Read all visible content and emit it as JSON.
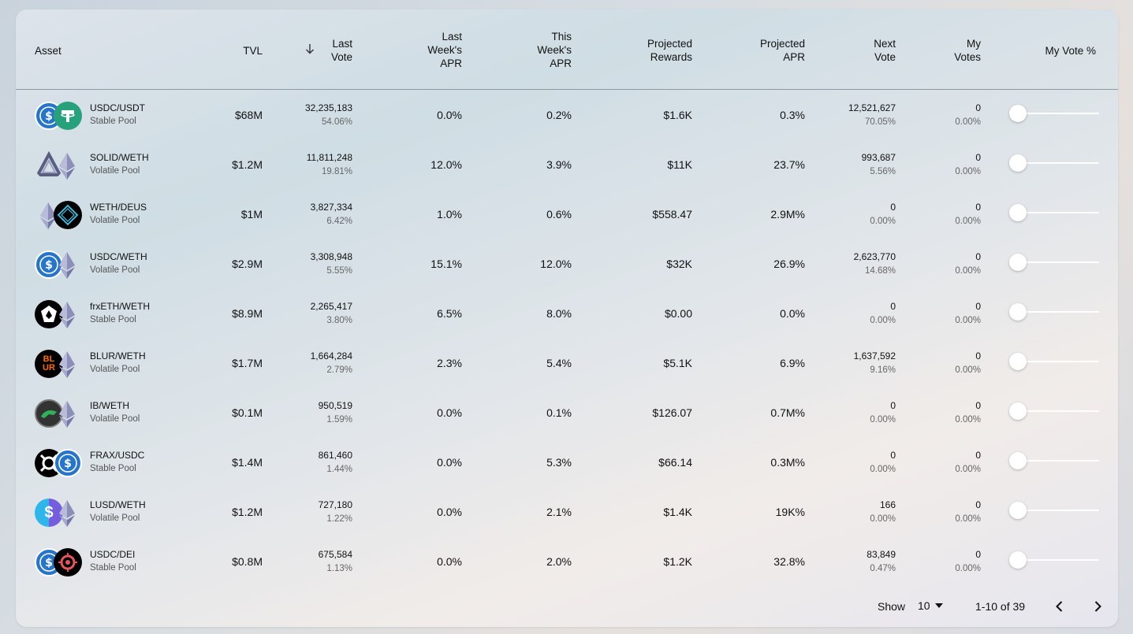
{
  "headers": {
    "asset": "Asset",
    "tvl": "TVL",
    "last_vote": "Last\nVote",
    "last_week_apr": "Last\nWeek's\nAPR",
    "this_week_apr": "This\nWeek's\nAPR",
    "projected_rewards": "Projected\nRewards",
    "projected_apr": "Projected\nAPR",
    "next_vote": "Next\nVote",
    "my_votes": "My\nVotes",
    "my_vote_pct": "My Vote %"
  },
  "rows": [
    {
      "pair": "USDC/USDT",
      "pool": "Stable Pool",
      "tvl": "$68M",
      "last_vote": "32,235,183",
      "last_vote_pct": "54.06%",
      "last_week_apr": "0.0%",
      "this_week_apr": "0.2%",
      "projected_rewards": "$1.6K",
      "projected_apr": "0.3%",
      "next_vote": "12,521,627",
      "next_vote_pct": "70.05%",
      "my_votes": "0",
      "my_votes_pct": "0.00%",
      "icon_a": "usdc-icon",
      "icon_b": "usdt-icon",
      "slider_value": 0
    },
    {
      "pair": "SOLID/WETH",
      "pool": "Volatile Pool",
      "tvl": "$1.2M",
      "last_vote": "11,811,248",
      "last_vote_pct": "19.81%",
      "last_week_apr": "12.0%",
      "this_week_apr": "3.9%",
      "projected_rewards": "$11K",
      "projected_apr": "23.7%",
      "next_vote": "993,687",
      "next_vote_pct": "5.56%",
      "my_votes": "0",
      "my_votes_pct": "0.00%",
      "icon_a": "solid-icon",
      "icon_b": "weth-icon",
      "slider_value": 0
    },
    {
      "pair": "WETH/DEUS",
      "pool": "Volatile Pool",
      "tvl": "$1M",
      "last_vote": "3,827,334",
      "last_vote_pct": "6.42%",
      "last_week_apr": "1.0%",
      "this_week_apr": "0.6%",
      "projected_rewards": "$558.47",
      "projected_apr": "2.9M%",
      "next_vote": "0",
      "next_vote_pct": "0.00%",
      "my_votes": "0",
      "my_votes_pct": "0.00%",
      "icon_a": "weth-icon",
      "icon_b": "deus-icon",
      "slider_value": 0
    },
    {
      "pair": "USDC/WETH",
      "pool": "Volatile Pool",
      "tvl": "$2.9M",
      "last_vote": "3,308,948",
      "last_vote_pct": "5.55%",
      "last_week_apr": "15.1%",
      "this_week_apr": "12.0%",
      "projected_rewards": "$32K",
      "projected_apr": "26.9%",
      "next_vote": "2,623,770",
      "next_vote_pct": "14.68%",
      "my_votes": "0",
      "my_votes_pct": "0.00%",
      "icon_a": "usdc-icon",
      "icon_b": "weth-icon",
      "slider_value": 0
    },
    {
      "pair": "frxETH/WETH",
      "pool": "Stable Pool",
      "tvl": "$8.9M",
      "last_vote": "2,265,417",
      "last_vote_pct": "3.80%",
      "last_week_apr": "6.5%",
      "this_week_apr": "8.0%",
      "projected_rewards": "$0.00",
      "projected_apr": "0.0%",
      "next_vote": "0",
      "next_vote_pct": "0.00%",
      "my_votes": "0",
      "my_votes_pct": "0.00%",
      "icon_a": "frxeth-icon",
      "icon_b": "weth-icon",
      "slider_value": 0
    },
    {
      "pair": "BLUR/WETH",
      "pool": "Volatile Pool",
      "tvl": "$1.7M",
      "last_vote": "1,664,284",
      "last_vote_pct": "2.79%",
      "last_week_apr": "2.3%",
      "this_week_apr": "5.4%",
      "projected_rewards": "$5.1K",
      "projected_apr": "6.9%",
      "next_vote": "1,637,592",
      "next_vote_pct": "9.16%",
      "my_votes": "0",
      "my_votes_pct": "0.00%",
      "icon_a": "blur-icon",
      "icon_b": "weth-icon",
      "slider_value": 0
    },
    {
      "pair": "IB/WETH",
      "pool": "Volatile Pool",
      "tvl": "$0.1M",
      "last_vote": "950,519",
      "last_vote_pct": "1.59%",
      "last_week_apr": "0.0%",
      "this_week_apr": "0.1%",
      "projected_rewards": "$126.07",
      "projected_apr": "0.7M%",
      "next_vote": "0",
      "next_vote_pct": "0.00%",
      "my_votes": "0",
      "my_votes_pct": "0.00%",
      "icon_a": "ib-icon",
      "icon_b": "weth-icon",
      "slider_value": 0
    },
    {
      "pair": "FRAX/USDC",
      "pool": "Stable Pool",
      "tvl": "$1.4M",
      "last_vote": "861,460",
      "last_vote_pct": "1.44%",
      "last_week_apr": "0.0%",
      "this_week_apr": "5.3%",
      "projected_rewards": "$66.14",
      "projected_apr": "0.3M%",
      "next_vote": "0",
      "next_vote_pct": "0.00%",
      "my_votes": "0",
      "my_votes_pct": "0.00%",
      "icon_a": "frax-icon",
      "icon_b": "usdc-icon",
      "slider_value": 0
    },
    {
      "pair": "LUSD/WETH",
      "pool": "Volatile Pool",
      "tvl": "$1.2M",
      "last_vote": "727,180",
      "last_vote_pct": "1.22%",
      "last_week_apr": "0.0%",
      "this_week_apr": "2.1%",
      "projected_rewards": "$1.4K",
      "projected_apr": "19K%",
      "next_vote": "166",
      "next_vote_pct": "0.00%",
      "my_votes": "0",
      "my_votes_pct": "0.00%",
      "icon_a": "lusd-icon",
      "icon_b": "weth-icon",
      "slider_value": 0
    },
    {
      "pair": "USDC/DEI",
      "pool": "Stable Pool",
      "tvl": "$0.8M",
      "last_vote": "675,584",
      "last_vote_pct": "1.13%",
      "last_week_apr": "0.0%",
      "this_week_apr": "2.0%",
      "projected_rewards": "$1.2K",
      "projected_apr": "32.8%",
      "next_vote": "83,849",
      "next_vote_pct": "0.47%",
      "my_votes": "0",
      "my_votes_pct": "0.00%",
      "icon_a": "usdc-icon",
      "icon_b": "dei-icon",
      "slider_value": 0
    }
  ],
  "footer": {
    "show_label": "Show",
    "page_size": "10",
    "range": "1-10 of 39"
  },
  "colors": {
    "usdc": "#2775CA",
    "usdt": "#26A17B",
    "weth": "#627EEA",
    "blur": "#FF6B00",
    "lusd": "#2EB6EA"
  }
}
